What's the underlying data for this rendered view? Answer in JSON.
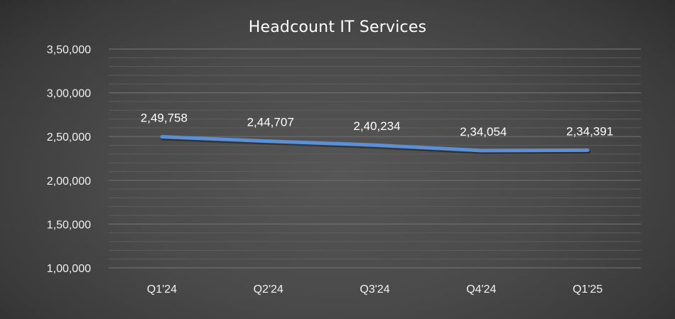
{
  "chart_data": {
    "type": "line",
    "title": "Headcount IT Services",
    "xlabel": "",
    "ylabel": "",
    "categories": [
      "Q1'24",
      "Q2'24",
      "Q3'24",
      "Q4'24",
      "Q1'25"
    ],
    "series": [
      {
        "name": "Headcount",
        "values": [
          249758,
          244707,
          240234,
          234054,
          234391
        ],
        "labels": [
          "2,49,758",
          "2,44,707",
          "2,40,234",
          "2,34,054",
          "2,34,391"
        ],
        "color": "#5b8fd6"
      }
    ],
    "ylim": [
      100000,
      350000
    ],
    "yticks": [
      100000,
      150000,
      200000,
      250000,
      300000,
      350000
    ],
    "ytick_labels": [
      "1,00,000",
      "1,50,000",
      "2,00,000",
      "2,50,000",
      "3,00,000",
      "3,50,000"
    ],
    "minor_grid_step": 10000,
    "grid": true,
    "legend": "none"
  },
  "colors": {
    "line": "#5b8fd6",
    "text": "#ffffff",
    "gridline": "#6a6a6a"
  }
}
